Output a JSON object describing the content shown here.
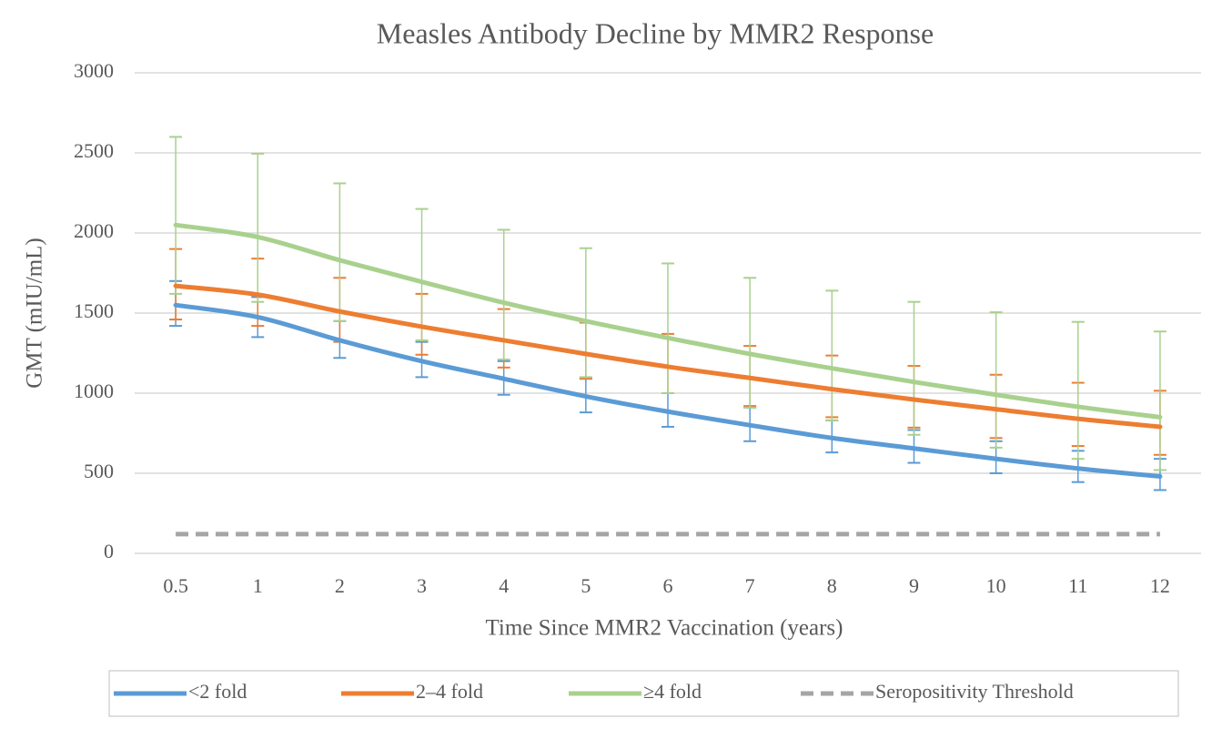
{
  "chart_data": {
    "type": "line",
    "title": "Measles Antibody Decline by MMR2 Response",
    "x_label": "Time Since MMR2 Vaccination (years)",
    "y_label": "GMT (mIU/mL)",
    "categories": [
      "0.5",
      "1",
      "2",
      "3",
      "4",
      "5",
      "6",
      "7",
      "8",
      "9",
      "10",
      "11",
      "12"
    ],
    "ylim": [
      0,
      3000
    ],
    "yticks": [
      0,
      500,
      1000,
      1500,
      2000,
      2500,
      3000
    ],
    "grid": true,
    "legend": "bottom",
    "series": [
      {
        "name": "<2 fold",
        "color": "#5b9bd5",
        "values": [
          1550,
          1475,
          1330,
          1200,
          1090,
          980,
          885,
          800,
          720,
          655,
          590,
          530,
          480
        ],
        "ci_lower": [
          1420,
          1350,
          1220,
          1100,
          990,
          880,
          790,
          700,
          630,
          565,
          500,
          445,
          395
        ],
        "ci_upper": [
          1700,
          1600,
          1450,
          1320,
          1200,
          1090,
          1000,
          910,
          830,
          770,
          700,
          640,
          590
        ]
      },
      {
        "name": "2–4 fold",
        "color": "#ed7d31",
        "values": [
          1670,
          1615,
          1510,
          1415,
          1330,
          1245,
          1165,
          1095,
          1025,
          960,
          900,
          840,
          790
        ],
        "ci_lower": [
          1460,
          1420,
          1320,
          1240,
          1160,
          1090,
          1000,
          920,
          850,
          785,
          720,
          670,
          615
        ],
        "ci_upper": [
          1900,
          1840,
          1720,
          1620,
          1525,
          1440,
          1370,
          1295,
          1235,
          1170,
          1115,
          1065,
          1015
        ]
      },
      {
        "name": "≥4 fold",
        "color": "#a9d18e",
        "values": [
          2050,
          1975,
          1830,
          1695,
          1565,
          1450,
          1345,
          1245,
          1155,
          1070,
          990,
          915,
          850
        ],
        "ci_lower": [
          1620,
          1570,
          1450,
          1330,
          1210,
          1100,
          1000,
          910,
          830,
          740,
          660,
          590,
          520
        ],
        "ci_upper": [
          2600,
          2495,
          2310,
          2150,
          2020,
          1905,
          1810,
          1720,
          1640,
          1570,
          1505,
          1445,
          1385
        ]
      },
      {
        "name": "Seropositivity Threshold",
        "color": "#a5a5a5",
        "dashed": true,
        "values": [
          120,
          120,
          120,
          120,
          120,
          120,
          120,
          120,
          120,
          120,
          120,
          120,
          120
        ]
      }
    ]
  }
}
